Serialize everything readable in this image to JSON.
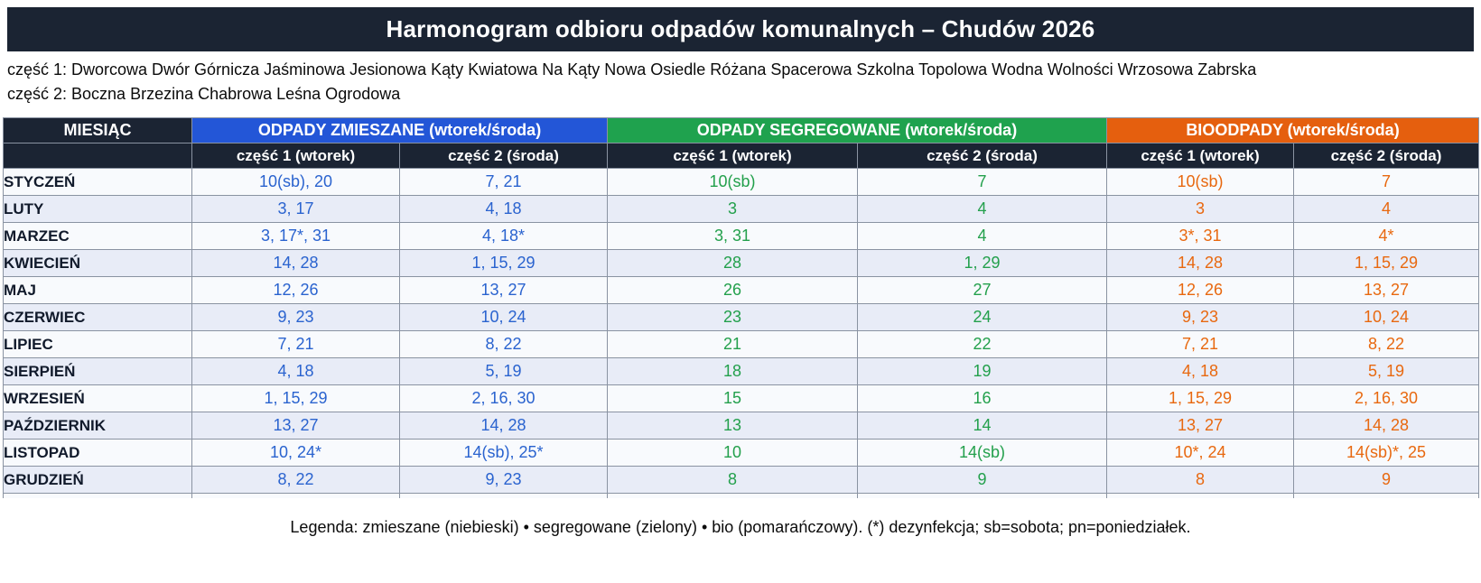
{
  "title": "Harmonogram odbioru odpadów komunalnych – Chudów 2026",
  "streets": {
    "part1": "część 1: Dworcowa Dwór Górnicza Jaśminowa Jesionowa Kąty Kwiatowa Na Kąty Nowa Osiedle Różana Spacerowa Szkolna Topolowa Wodna Wolności Wrzosowa Zabrska",
    "part2": "część 2: Boczna Brzezina Chabrowa Leśna Ogrodowa"
  },
  "colors": {
    "navy": "#1b2433",
    "blue_header": "#2356d7",
    "green_header": "#1fa24e",
    "orange_header": "#e55f0e",
    "blue_text": "#2a63cf",
    "green_text": "#23a04c",
    "orange_text": "#e8680f",
    "row_odd": "#f8fafd",
    "row_even": "#e8ecf7",
    "border": "#8a93a2"
  },
  "table": {
    "month_header": "MIESIĄC",
    "groups": [
      {
        "key": "zmieszane",
        "label": "ODPADY ZMIESZANE (wtorek/środa)"
      },
      {
        "key": "segregowane",
        "label": "ODPADY SEGREGOWANE (wtorek/środa)"
      },
      {
        "key": "bio",
        "label": "BIOODPADY (wtorek/środa)"
      }
    ],
    "subheaders": [
      "część 1 (wtorek)",
      "część 2 (środa)"
    ],
    "rows": [
      {
        "month": "STYCZEŃ",
        "cells": [
          "10(sb), 20",
          "7, 21",
          "10(sb)",
          "7",
          "10(sb)",
          "7"
        ]
      },
      {
        "month": "LUTY",
        "cells": [
          "3, 17",
          "4, 18",
          "3",
          "4",
          "3",
          "4"
        ]
      },
      {
        "month": "MARZEC",
        "cells": [
          "3, 17*, 31",
          "4, 18*",
          "3, 31",
          "4",
          "3*, 31",
          "4*"
        ]
      },
      {
        "month": "KWIECIEŃ",
        "cells": [
          "14, 28",
          "1, 15, 29",
          "28",
          "1, 29",
          "14, 28",
          "1, 15, 29"
        ]
      },
      {
        "month": "MAJ",
        "cells": [
          "12, 26",
          "13, 27",
          "26",
          "27",
          "12, 26",
          "13, 27"
        ]
      },
      {
        "month": "CZERWIEC",
        "cells": [
          "9, 23",
          "10, 24",
          "23",
          "24",
          "9, 23",
          "10, 24"
        ]
      },
      {
        "month": "LIPIEC",
        "cells": [
          "7, 21",
          "8, 22",
          "21",
          "22",
          "7, 21",
          "8, 22"
        ]
      },
      {
        "month": "SIERPIEŃ",
        "cells": [
          "4, 18",
          "5, 19",
          "18",
          "19",
          "4, 18",
          "5, 19"
        ]
      },
      {
        "month": "WRZESIEŃ",
        "cells": [
          "1, 15, 29",
          "2, 16, 30",
          "15",
          "16",
          "1, 15, 29",
          "2, 16, 30"
        ]
      },
      {
        "month": "PAŹDZIERNIK",
        "cells": [
          "13, 27",
          "14, 28",
          "13",
          "14",
          "13, 27",
          "14, 28"
        ]
      },
      {
        "month": "LISTOPAD",
        "cells": [
          "10, 24*",
          "14(sb), 25*",
          "10",
          "14(sb)",
          "10*, 24",
          "14(sb)*, 25"
        ]
      },
      {
        "month": "GRUDZIEŃ",
        "cells": [
          "8, 22",
          "9, 23",
          "8",
          "9",
          "8",
          "9"
        ]
      }
    ]
  },
  "legend": "Legenda: zmieszane (niebieski) • segregowane (zielony) • bio (pomarańczowy).  (*) dezynfekcja; sb=sobota; pn=poniedziałek."
}
